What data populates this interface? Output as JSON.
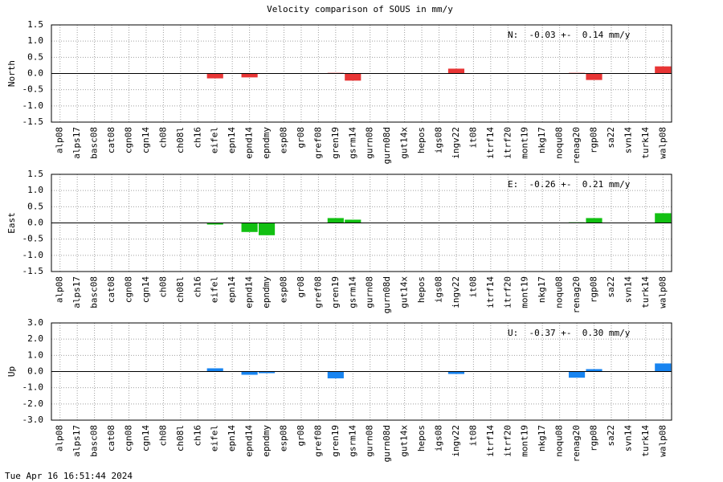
{
  "title": "Velocity comparison of SOUS in mm/y",
  "timestamp": "Tue Apr 16 16:51:44 2024",
  "chart_data": [
    {
      "type": "bar",
      "ylabel": "North",
      "annotation": "N:  -0.03 +-  0.14 mm/y",
      "color": "#e83535",
      "grid": true,
      "categories": [
        "alp08",
        "alps17",
        "basc08",
        "cat08",
        "cgn08",
        "cgn14",
        "ch08",
        "ch08l",
        "ch16",
        "eifel",
        "epn14",
        "epnd14",
        "epndmy",
        "esp08",
        "gr08",
        "gref08",
        "gren19",
        "gsrm14",
        "gurn08",
        "gurn08d",
        "gut14x",
        "hepos",
        "igs08",
        "ingv22",
        "it08",
        "itrf14",
        "itrf20",
        "mont19",
        "nkg17",
        "noqu08",
        "renag20",
        "rgp08",
        "sa22",
        "svn14",
        "turk14",
        "walp08"
      ],
      "values": [
        null,
        null,
        null,
        null,
        null,
        null,
        null,
        null,
        null,
        -0.15,
        null,
        -0.12,
        null,
        null,
        null,
        null,
        0.02,
        -0.22,
        null,
        null,
        null,
        null,
        null,
        0.15,
        null,
        null,
        null,
        null,
        null,
        null,
        0.02,
        -0.2,
        null,
        null,
        null,
        0.22
      ],
      "ylim": [
        -1.5,
        1.5
      ],
      "yticks": [
        1.5,
        {
          "value": 1,
          "label": "1.0"
        },
        0.5,
        {
          "value": 0,
          "label": "0.0"
        },
        -0.5,
        {
          "value": -1,
          "label": "-1.0"
        },
        -1.5
      ]
    },
    {
      "type": "bar",
      "ylabel": "East",
      "annotation": "E:  -0.26 +-  0.21 mm/y",
      "color": "#12c012",
      "grid": true,
      "categories": [
        "alp08",
        "alps17",
        "basc08",
        "cat08",
        "cgn08",
        "cgn14",
        "ch08",
        "ch08l",
        "ch16",
        "eifel",
        "epn14",
        "epnd14",
        "epndmy",
        "esp08",
        "gr08",
        "gref08",
        "gren19",
        "gsrm14",
        "gurn08",
        "gurn08d",
        "gut14x",
        "hepos",
        "igs08",
        "ingv22",
        "it08",
        "itrf14",
        "itrf20",
        "mont19",
        "nkg17",
        "noqu08",
        "renag20",
        "rgp08",
        "sa22",
        "svn14",
        "turk14",
        "walp08"
      ],
      "values": [
        null,
        null,
        null,
        null,
        null,
        null,
        null,
        null,
        null,
        -0.05,
        null,
        -0.28,
        -0.38,
        null,
        null,
        null,
        0.15,
        0.1,
        null,
        null,
        null,
        null,
        null,
        null,
        null,
        null,
        null,
        null,
        null,
        null,
        0.02,
        0.15,
        null,
        null,
        null,
        0.3
      ],
      "ylim": [
        -1.5,
        1.5
      ],
      "yticks": [
        1.5,
        {
          "value": 1,
          "label": "1.0"
        },
        0.5,
        {
          "value": 0,
          "label": "0.0"
        },
        -0.5,
        {
          "value": -1,
          "label": "-1.0"
        },
        -1.5
      ]
    },
    {
      "type": "bar",
      "ylabel": "Up",
      "annotation": "U:  -0.37 +-  0.30 mm/y",
      "color": "#1884f0",
      "grid": true,
      "categories": [
        "alp08",
        "alps17",
        "basc08",
        "cat08",
        "cgn08",
        "cgn14",
        "ch08",
        "ch08l",
        "ch16",
        "eifel",
        "epn14",
        "epnd14",
        "epndmy",
        "esp08",
        "gr08",
        "gref08",
        "gren19",
        "gsrm14",
        "gurn08",
        "gurn08d",
        "gut14x",
        "hepos",
        "igs08",
        "ingv22",
        "it08",
        "itrf14",
        "itrf20",
        "mont19",
        "nkg17",
        "noqu08",
        "renag20",
        "rgp08",
        "sa22",
        "svn14",
        "turk14",
        "walp08"
      ],
      "values": [
        null,
        null,
        null,
        null,
        null,
        null,
        null,
        null,
        null,
        0.2,
        null,
        -0.2,
        -0.1,
        null,
        null,
        null,
        -0.42,
        null,
        null,
        null,
        null,
        null,
        null,
        -0.15,
        null,
        null,
        null,
        null,
        null,
        null,
        -0.38,
        0.15,
        null,
        null,
        null,
        0.5
      ],
      "ylim": [
        -3,
        3
      ],
      "yticks": [
        {
          "value": 3,
          "label": "3.0"
        },
        {
          "value": 2,
          "label": "2.0"
        },
        {
          "value": 1,
          "label": "1.0"
        },
        {
          "value": 0,
          "label": "0.0"
        },
        {
          "value": -1,
          "label": "-1.0"
        },
        {
          "value": -2,
          "label": "-2.0"
        },
        {
          "value": -3,
          "label": "-3.0"
        }
      ]
    }
  ]
}
